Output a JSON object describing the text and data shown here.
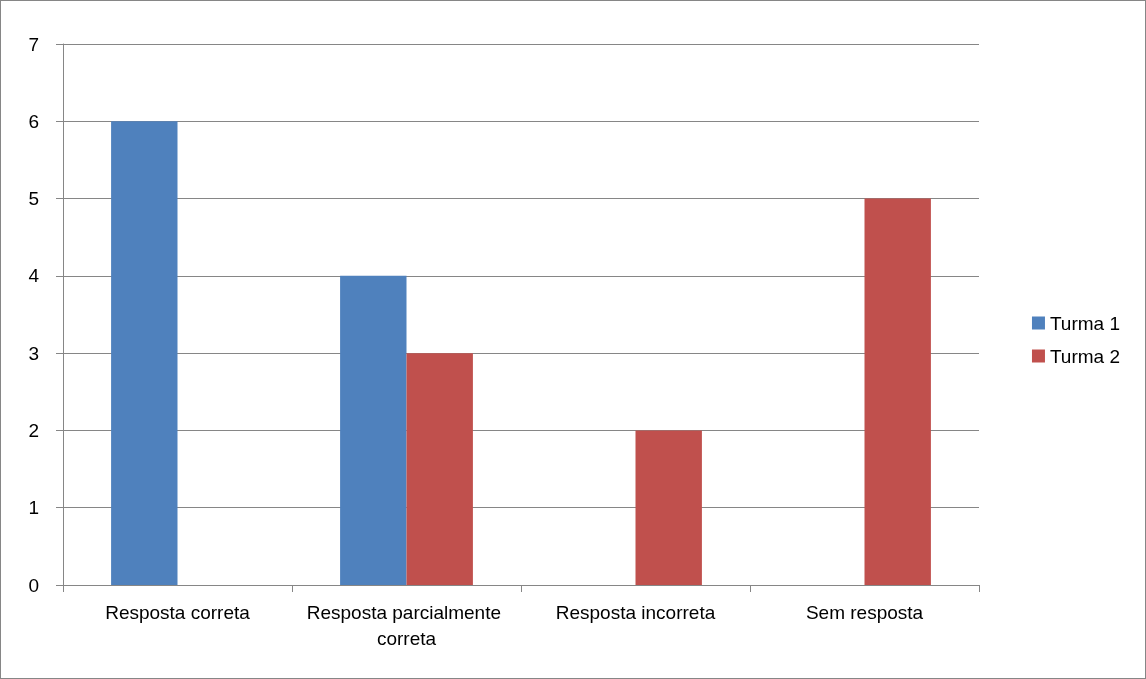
{
  "chart_data": {
    "type": "bar",
    "categories": [
      "Resposta correta",
      "Resposta parcialmente correta",
      "Resposta incorreta",
      "Sem resposta"
    ],
    "series": [
      {
        "name": "Turma 1",
        "color": "#4f81bd",
        "values": [
          6,
          4,
          0,
          0
        ]
      },
      {
        "name": "Turma 2",
        "color": "#c0504d",
        "values": [
          0,
          3,
          2,
          5
        ]
      }
    ],
    "ylim": [
      0,
      7
    ],
    "yticks": [
      0,
      1,
      2,
      3,
      4,
      5,
      6,
      7
    ],
    "grid": "y",
    "legend": "right"
  }
}
